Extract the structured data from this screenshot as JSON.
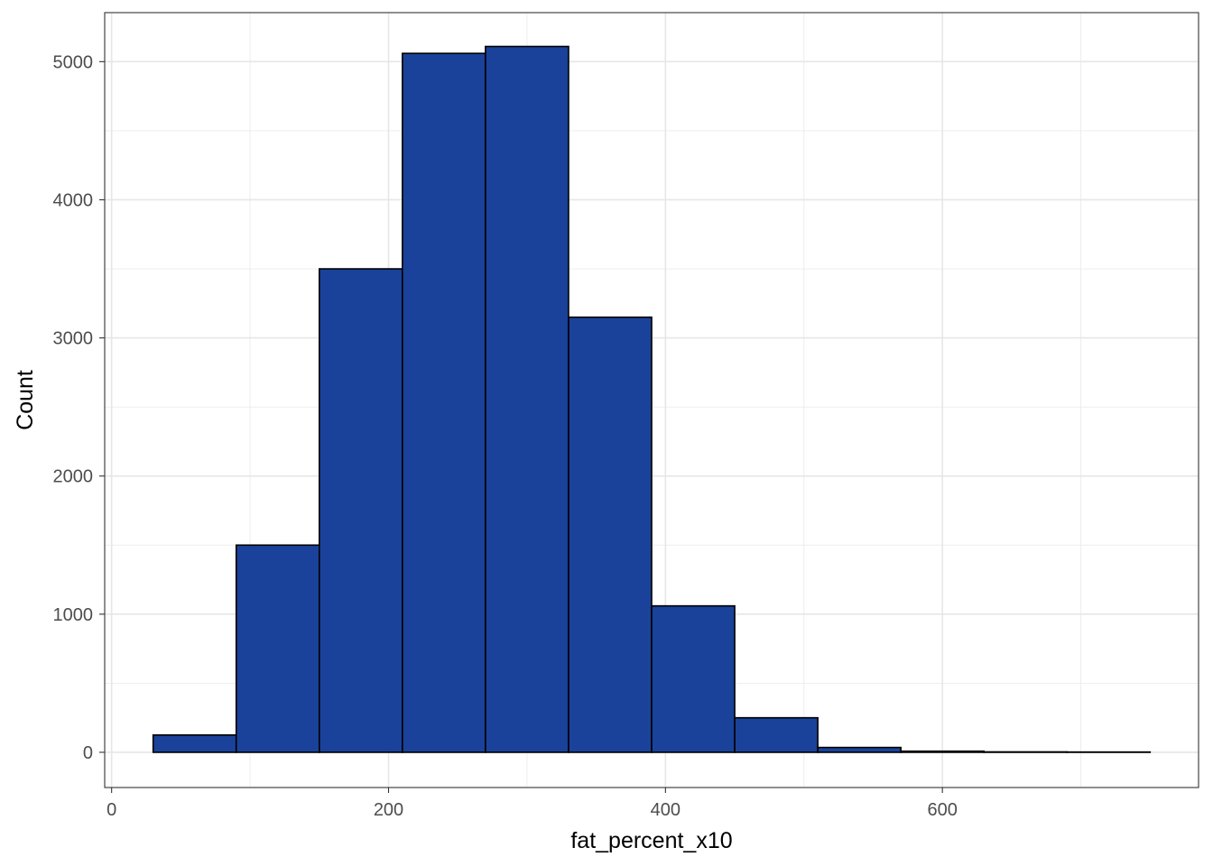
{
  "chart_data": {
    "type": "bar",
    "subtype": "histogram",
    "xlabel": "fat_percent_x10",
    "ylabel": "Count",
    "xlim": [
      -5,
      785
    ],
    "ylim": [
      -255,
      5355
    ],
    "x_ticks": [
      0,
      200,
      400,
      600
    ],
    "y_ticks": [
      0,
      1000,
      2000,
      3000,
      4000,
      5000
    ],
    "x_tick_labels": [
      "0",
      "200",
      "400",
      "600"
    ],
    "y_tick_labels": [
      "0",
      "1000",
      "2000",
      "3000",
      "4000",
      "5000"
    ],
    "grid": true,
    "bar_fill": "#1a429a",
    "bar_outline": "#000000",
    "bins": [
      {
        "x0": 30,
        "x1": 90,
        "count": 125
      },
      {
        "x0": 90,
        "x1": 150,
        "count": 1500
      },
      {
        "x0": 150,
        "x1": 210,
        "count": 3500
      },
      {
        "x0": 210,
        "x1": 270,
        "count": 5060
      },
      {
        "x0": 270,
        "x1": 330,
        "count": 5110
      },
      {
        "x0": 330,
        "x1": 390,
        "count": 3150
      },
      {
        "x0": 390,
        "x1": 450,
        "count": 1060
      },
      {
        "x0": 450,
        "x1": 510,
        "count": 250
      },
      {
        "x0": 510,
        "x1": 570,
        "count": 35
      },
      {
        "x0": 570,
        "x1": 630,
        "count": 8
      },
      {
        "x0": 630,
        "x1": 690,
        "count": 3
      },
      {
        "x0": 690,
        "x1": 750,
        "count": 2
      }
    ]
  }
}
